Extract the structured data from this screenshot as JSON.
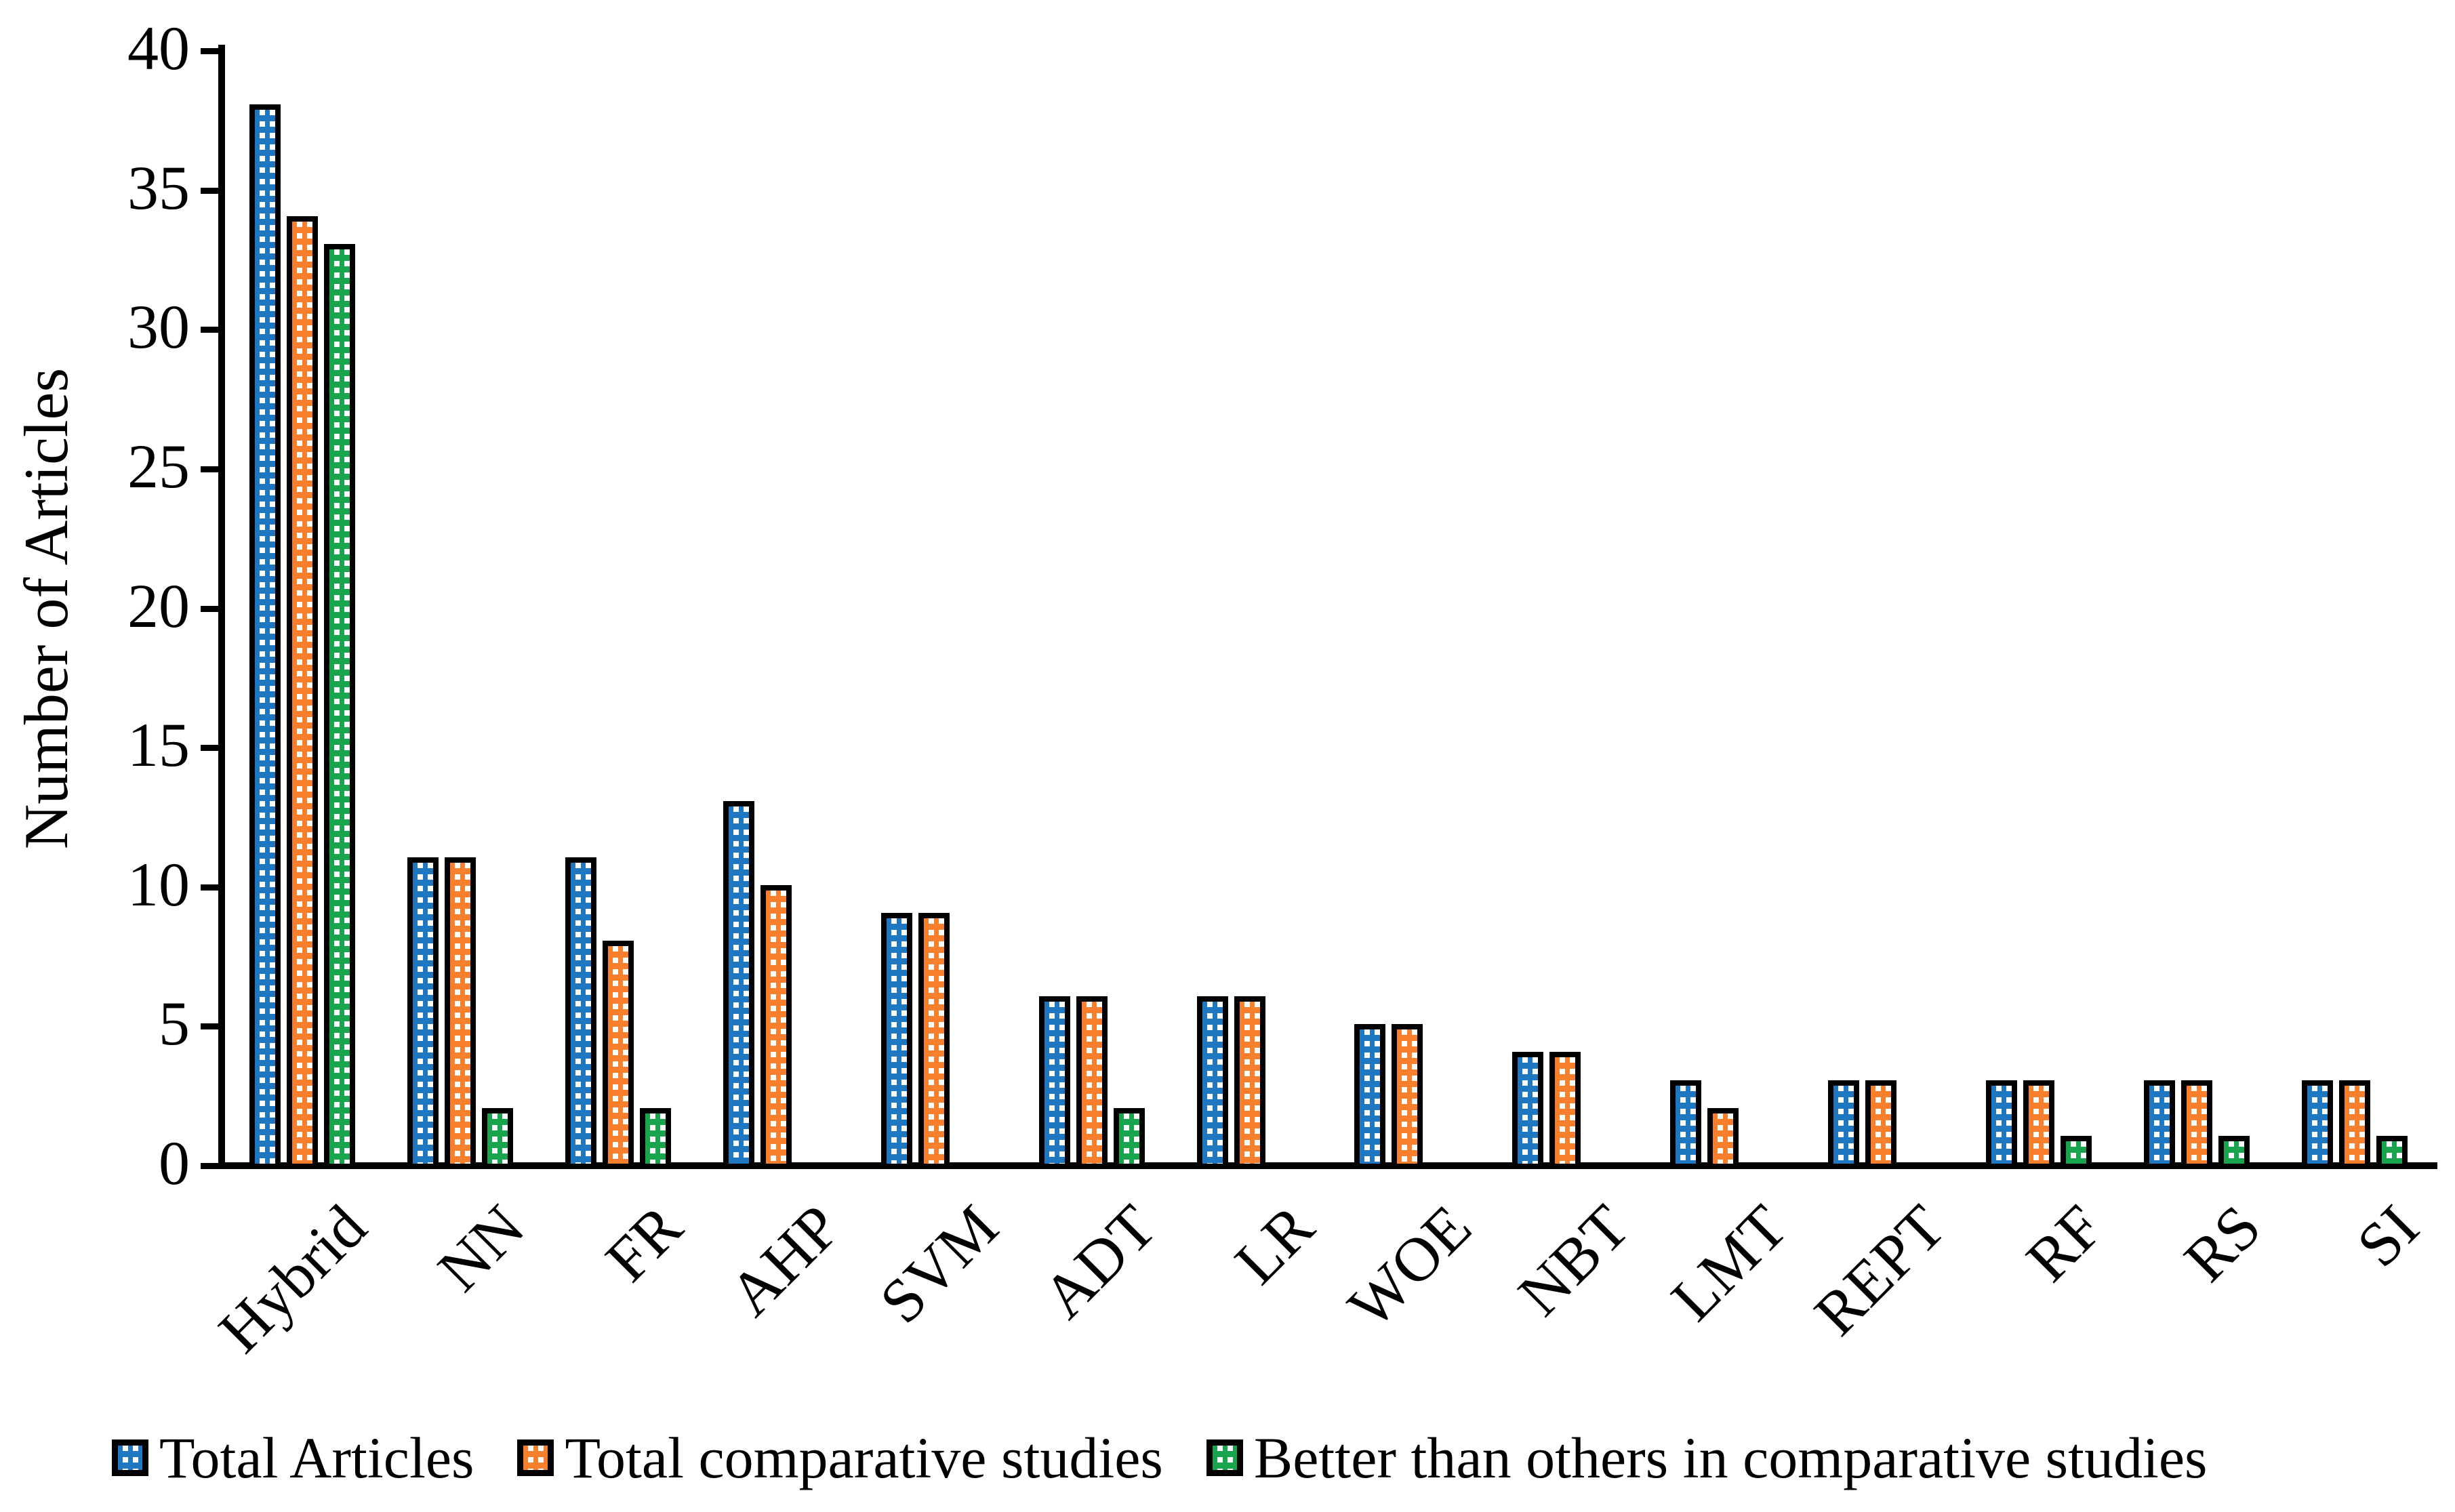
{
  "chart_data": {
    "type": "bar",
    "title": "",
    "xlabel": "",
    "ylabel": "Number of Articles",
    "ylim": [
      0,
      40
    ],
    "yticks": [
      0,
      5,
      10,
      15,
      20,
      25,
      30,
      35,
      40
    ],
    "grid": false,
    "legend_position": "bottom",
    "bar_outline_color": "#000000",
    "background_color": "#ffffff",
    "categories": [
      "Hybrid",
      "NN",
      "FR",
      "AHP",
      "SVM",
      "ADT",
      "LR",
      "WOE",
      "NBT",
      "LMT",
      "REPT",
      "RF",
      "RS",
      "SI"
    ],
    "series": [
      {
        "name": "Total Articles",
        "color": "#1F77C2",
        "fill_pattern": "white-dotted",
        "values": [
          38,
          11,
          11,
          13,
          9,
          6,
          6,
          5,
          4,
          3,
          3,
          3,
          3,
          3
        ]
      },
      {
        "name": "Total comparative studies",
        "color": "#F8802C",
        "fill_pattern": "white-dotted",
        "values": [
          34,
          11,
          8,
          10,
          9,
          6,
          6,
          5,
          4,
          2,
          3,
          3,
          3,
          3
        ]
      },
      {
        "name": "Better than others in comparative studies",
        "color": "#19A54E",
        "fill_pattern": "white-dotted",
        "values": [
          33,
          2,
          2,
          0,
          0,
          2,
          0,
          0,
          0,
          0,
          0,
          1,
          1,
          1
        ]
      }
    ]
  }
}
